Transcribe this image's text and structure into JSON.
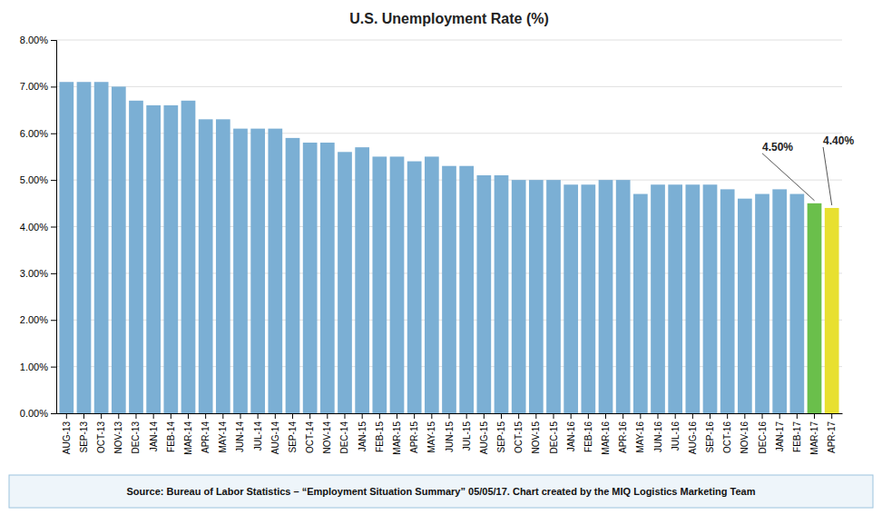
{
  "chart_data": {
    "type": "bar",
    "title": "U.S. Unemployment Rate (%)",
    "categories": [
      "AUG-13",
      "SEP-13",
      "OCT-13",
      "NOV-13",
      "DEC-13",
      "JAN-14",
      "FEB-14",
      "MAR-14",
      "APR-14",
      "MAY-14",
      "JUN-14",
      "JUL-14",
      "AUG-14",
      "SEP-14",
      "OCT-14",
      "NOV-14",
      "DEC-14",
      "JAN-15",
      "FEB-15",
      "MAR-15",
      "APR-15",
      "MAY-15",
      "JUN-15",
      "JUL-15",
      "AUG-15",
      "SEP-15",
      "OCT-15",
      "NOV-15",
      "DEC-15",
      "JAN-16",
      "FEB-16",
      "MAR-16",
      "APR-16",
      "MAY-16",
      "JUN-16",
      "JUL-16",
      "AUG-16",
      "SEP-16",
      "OCT-16",
      "NOV-16",
      "DEC-16",
      "JAN-17",
      "FEB-17",
      "MAR-17",
      "APR-17"
    ],
    "values": [
      7.1,
      7.1,
      7.1,
      7.0,
      6.7,
      6.6,
      6.6,
      6.7,
      6.3,
      6.3,
      6.1,
      6.1,
      6.1,
      5.9,
      5.8,
      5.8,
      5.6,
      5.7,
      5.5,
      5.5,
      5.4,
      5.5,
      5.3,
      5.3,
      5.1,
      5.1,
      5.0,
      5.0,
      5.0,
      4.9,
      4.9,
      5.0,
      5.0,
      4.7,
      4.9,
      4.9,
      4.9,
      4.9,
      4.8,
      4.6,
      4.7,
      4.8,
      4.7,
      4.5,
      4.4
    ],
    "colors": [
      "#7BAFD4",
      "#7BAFD4",
      "#7BAFD4",
      "#7BAFD4",
      "#7BAFD4",
      "#7BAFD4",
      "#7BAFD4",
      "#7BAFD4",
      "#7BAFD4",
      "#7BAFD4",
      "#7BAFD4",
      "#7BAFD4",
      "#7BAFD4",
      "#7BAFD4",
      "#7BAFD4",
      "#7BAFD4",
      "#7BAFD4",
      "#7BAFD4",
      "#7BAFD4",
      "#7BAFD4",
      "#7BAFD4",
      "#7BAFD4",
      "#7BAFD4",
      "#7BAFD4",
      "#7BAFD4",
      "#7BAFD4",
      "#7BAFD4",
      "#7BAFD4",
      "#7BAFD4",
      "#7BAFD4",
      "#7BAFD4",
      "#7BAFD4",
      "#7BAFD4",
      "#7BAFD4",
      "#7BAFD4",
      "#7BAFD4",
      "#7BAFD4",
      "#7BAFD4",
      "#7BAFD4",
      "#7BAFD4",
      "#7BAFD4",
      "#7BAFD4",
      "#7BAFD4",
      "#6abf4b",
      "#e8e030"
    ],
    "ylim": [
      0.0,
      8.0
    ],
    "yticks": [
      {
        "value": 0.0,
        "label": "0.00%"
      },
      {
        "value": 1.0,
        "label": "1.00%"
      },
      {
        "value": 2.0,
        "label": "2.00%"
      },
      {
        "value": 3.0,
        "label": "3.00%"
      },
      {
        "value": 4.0,
        "label": "4.00%"
      },
      {
        "value": 5.0,
        "label": "5.00%"
      },
      {
        "value": 6.0,
        "label": "6.00%"
      },
      {
        "value": 7.0,
        "label": "7.00%"
      },
      {
        "value": 8.0,
        "label": "8.00%"
      }
    ],
    "grid": true,
    "annotations": [
      {
        "text": "4.50%",
        "category": "MAR-17"
      },
      {
        "text": "4.40%",
        "category": "APR-17"
      }
    ],
    "footer": "Source: Bureau of Labor Statistics – “Employment Situation Summary” 05/05/17.  Chart created by the MIQ Logistics Marketing Team"
  }
}
